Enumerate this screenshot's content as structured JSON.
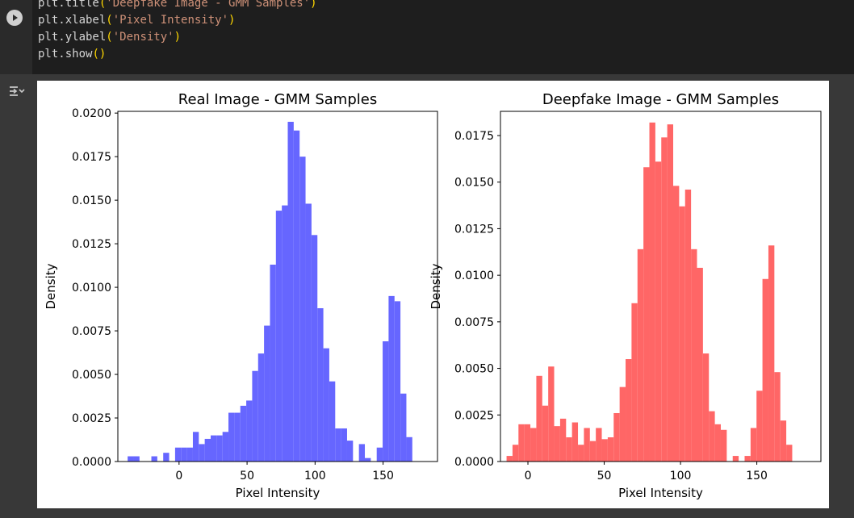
{
  "code": {
    "lines": [
      [
        {
          "t": "plt.title",
          "c": ""
        },
        {
          "t": "(",
          "c": "paren"
        },
        {
          "t": "'Deepfake Image - GMM Samples'",
          "c": "str"
        },
        {
          "t": ")",
          "c": "paren"
        }
      ],
      [
        {
          "t": "plt.xlabel",
          "c": ""
        },
        {
          "t": "(",
          "c": "paren"
        },
        {
          "t": "'Pixel Intensity'",
          "c": "str"
        },
        {
          "t": ")",
          "c": "paren"
        }
      ],
      [
        {
          "t": "plt.ylabel",
          "c": ""
        },
        {
          "t": "(",
          "c": "paren"
        },
        {
          "t": "'Density'",
          "c": "str"
        },
        {
          "t": ")",
          "c": "paren"
        }
      ],
      [
        {
          "t": "plt.show",
          "c": ""
        },
        {
          "t": "()",
          "c": "paren"
        }
      ]
    ]
  },
  "icons": {
    "run": "play-icon",
    "output": "output-toggle-icon"
  },
  "colors": {
    "real": "#6666ff",
    "deepfake": "#ff6666"
  },
  "chart_data": [
    {
      "type": "bar",
      "title": "Real Image - GMM Samples",
      "xlabel": "Pixel Intensity",
      "ylabel": "Density",
      "xlim": [
        -45,
        190
      ],
      "ylim": [
        0,
        0.0201
      ],
      "xticks": [
        0,
        50,
        100,
        150
      ],
      "yticks": [
        0.0,
        0.0025,
        0.005,
        0.0075,
        0.01,
        0.0125,
        0.015,
        0.0175,
        0.02
      ],
      "ytick_labels": [
        "0.0000",
        "0.0025",
        "0.0050",
        "0.0075",
        "0.0100",
        "0.0125",
        "0.0150",
        "0.0175",
        "0.0200"
      ],
      "xtick_labels": [
        "0",
        "50",
        "100",
        "150"
      ],
      "color": "#6666ff",
      "bin_start": -37.8,
      "bin_width": 4.36,
      "values": [
        0.0003,
        0.0003,
        0,
        0,
        0.0003,
        0,
        0.0005,
        0,
        0.0008,
        0.0008,
        0.0008,
        0.0017,
        0.001,
        0.0013,
        0.0015,
        0.0015,
        0.0017,
        0.0028,
        0.0028,
        0.0032,
        0.0035,
        0.0052,
        0.0062,
        0.0078,
        0.0113,
        0.0144,
        0.0147,
        0.0195,
        0.019,
        0.0175,
        0.0148,
        0.013,
        0.0088,
        0.0065,
        0.0046,
        0.0019,
        0.0019,
        0.0012,
        0,
        0.001,
        0.0002,
        0,
        0.0008,
        0.0069,
        0.0095,
        0.0092,
        0.0039,
        0.0014
      ]
    },
    {
      "type": "bar",
      "title": "Deepfake Image - GMM Samples",
      "xlabel": "Pixel Intensity",
      "ylabel": "Density",
      "xlim": [
        -18,
        192
      ],
      "ylim": [
        0,
        0.0188
      ],
      "xticks": [
        0,
        50,
        100,
        150
      ],
      "yticks": [
        0.0,
        0.0025,
        0.005,
        0.0075,
        0.01,
        0.0125,
        0.015,
        0.0175
      ],
      "ytick_labels": [
        "0.0000",
        "0.0025",
        "0.0050",
        "0.0075",
        "0.0100",
        "0.0125",
        "0.0150",
        "0.0175"
      ],
      "xtick_labels": [
        "0",
        "50",
        "100",
        "150"
      ],
      "color": "#ff6666",
      "bin_start": -14.0,
      "bin_width": 3.9,
      "values": [
        0.0003,
        0.0009,
        0.002,
        0.002,
        0.0018,
        0.0046,
        0.003,
        0.0051,
        0.0019,
        0.0023,
        0.0013,
        0.0021,
        0.0009,
        0.0018,
        0.0011,
        0.0018,
        0.0012,
        0.0013,
        0.0026,
        0.004,
        0.0055,
        0.0085,
        0.0114,
        0.0158,
        0.0182,
        0.0161,
        0.0174,
        0.0181,
        0.0148,
        0.0137,
        0.0146,
        0.0114,
        0.0104,
        0.0058,
        0.0027,
        0.002,
        0.0017,
        0,
        0.0003,
        0,
        0.0003,
        0.0018,
        0.0038,
        0.0098,
        0.0116,
        0.0048,
        0.0022,
        0.0009
      ]
    }
  ]
}
